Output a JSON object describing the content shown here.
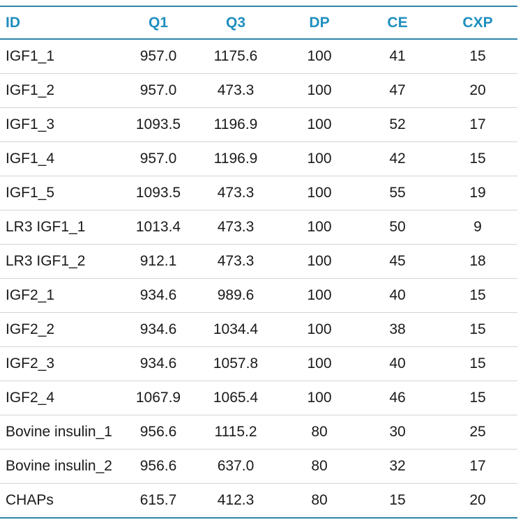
{
  "table": {
    "headers": [
      "ID",
      "Q1",
      "Q3",
      "DP",
      "CE",
      "CXP"
    ],
    "rows": [
      [
        "IGF1_1",
        "957.0",
        "1175.6",
        "100",
        "41",
        "15"
      ],
      [
        "IGF1_2",
        "957.0",
        "473.3",
        "100",
        "47",
        "20"
      ],
      [
        "IGF1_3",
        "1093.5",
        "1196.9",
        "100",
        "52",
        "17"
      ],
      [
        "IGF1_4",
        "957.0",
        "1196.9",
        "100",
        "42",
        "15"
      ],
      [
        "IGF1_5",
        "1093.5",
        "473.3",
        "100",
        "55",
        "19"
      ],
      [
        "LR3 IGF1_1",
        "1013.4",
        "473.3",
        "100",
        "50",
        "9"
      ],
      [
        "LR3 IGF1_2",
        "912.1",
        "473.3",
        "100",
        "45",
        "18"
      ],
      [
        "IGF2_1",
        "934.6",
        "989.6",
        "100",
        "40",
        "15"
      ],
      [
        "IGF2_2",
        "934.6",
        "1034.4",
        "100",
        "38",
        "15"
      ],
      [
        "IGF2_3",
        "934.6",
        "1057.8",
        "100",
        "40",
        "15"
      ],
      [
        "IGF2_4",
        "1067.9",
        "1065.4",
        "100",
        "46",
        "15"
      ],
      [
        "Bovine insulin_1",
        "956.6",
        "1115.2",
        "80",
        "30",
        "25"
      ],
      [
        "Bovine insulin_2",
        "956.6",
        "637.0",
        "80",
        "32",
        "17"
      ],
      [
        "CHAPs",
        "615.7",
        "412.3",
        "80",
        "15",
        "20"
      ]
    ]
  },
  "colors": {
    "header_text": "#1f8fbf",
    "rule": "#2e86a8",
    "row_divider": "#d4d4d4"
  }
}
